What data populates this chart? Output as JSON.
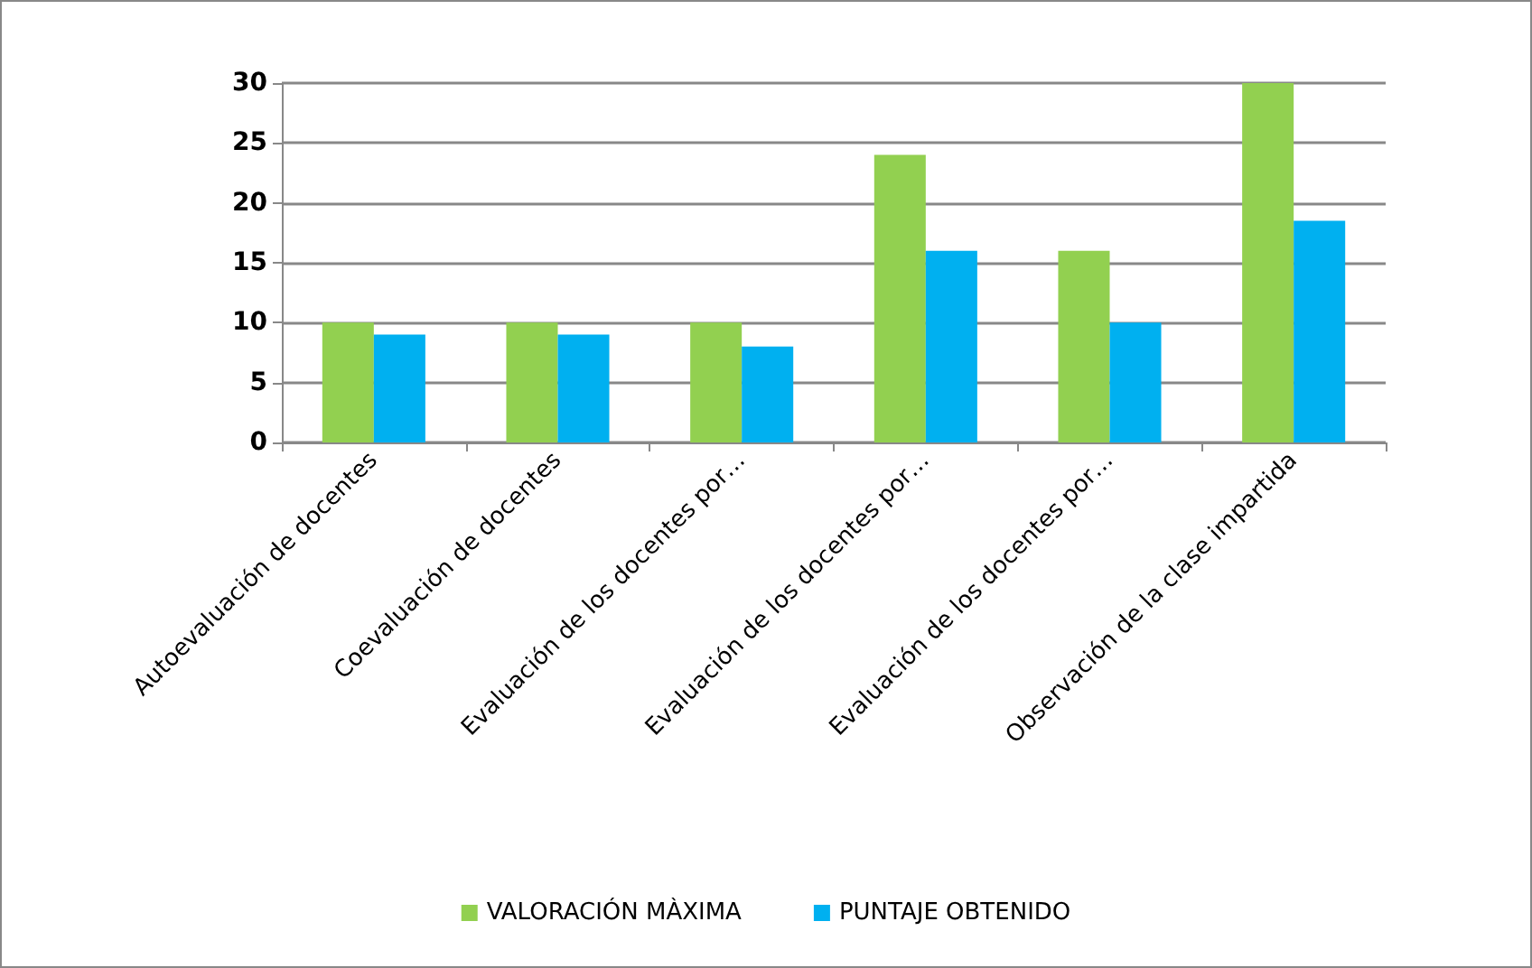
{
  "chart_data": {
    "type": "bar",
    "categories": [
      "Autoevaluación de docentes",
      "Coevaluación de docentes",
      "Evaluación de los docentes por…",
      "Evaluación de los docentes por…",
      "Evaluación de los docentes por…",
      "Observación de la clase impartida"
    ],
    "series": [
      {
        "name": "VALORACIÓN MÀXIMA",
        "color": "#92d050",
        "values": [
          10,
          10,
          10,
          24,
          16,
          30
        ]
      },
      {
        "name": "PUNTAJE OBTENIDO",
        "color": "#00b0f0",
        "values": [
          9,
          9,
          8,
          16,
          10,
          18.5
        ]
      }
    ],
    "ylim": [
      0,
      30
    ],
    "yticks": [
      0,
      5,
      10,
      15,
      20,
      25,
      30
    ],
    "grid": "y",
    "legend": "bottom"
  }
}
